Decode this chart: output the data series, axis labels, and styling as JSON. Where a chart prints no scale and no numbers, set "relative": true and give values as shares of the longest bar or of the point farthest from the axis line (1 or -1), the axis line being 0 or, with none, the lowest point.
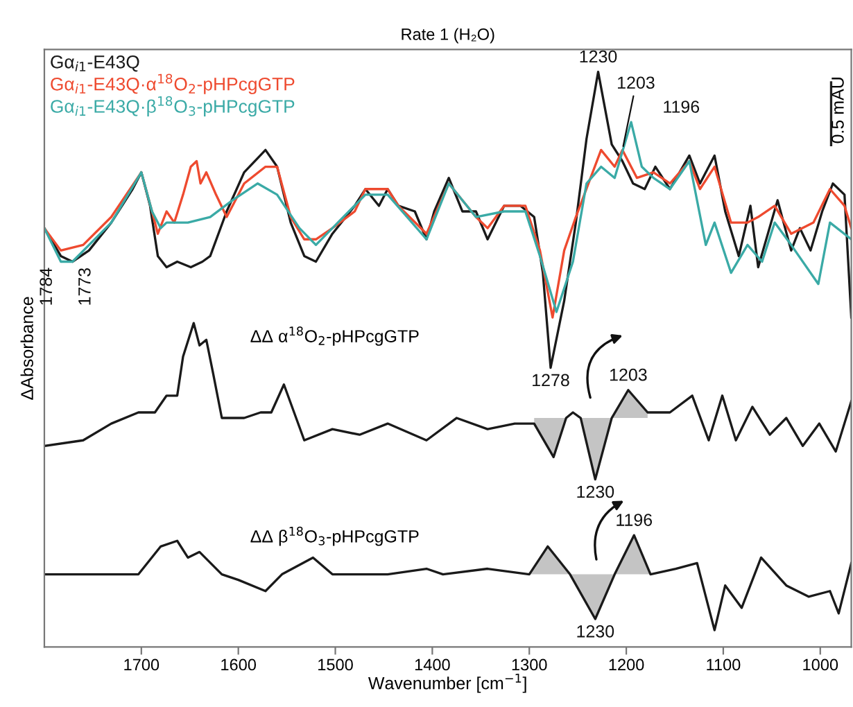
{
  "chart_data": {
    "type": "line",
    "relative": true,
    "title": "Rate 1 (H₂O)",
    "xlabel": "Wavenumber [cm$^{−1}$]",
    "ylabel": "ΔAbsorbance",
    "xlim": [
      1800,
      968
    ],
    "xticks": [
      1700,
      1600,
      1500,
      1400,
      1300,
      1200,
      1100,
      1000
    ],
    "legend": "top left",
    "grid": false,
    "series": [
      {
        "name": "Gα$_{i1}$-E43Q",
        "color": "#1a1a1a",
        "x": [
          1800,
          1783,
          1771,
          1754,
          1731,
          1709,
          1700,
          1691,
          1683,
          1674,
          1663,
          1649,
          1637,
          1629,
          1612,
          1594,
          1572,
          1560,
          1546,
          1532,
          1520,
          1503,
          1480,
          1469,
          1455,
          1446,
          1435,
          1418,
          1406,
          1398,
          1383,
          1369,
          1355,
          1343,
          1326,
          1309,
          1295,
          1286,
          1278,
          1264,
          1252,
          1241,
          1229,
          1215,
          1204,
          1193,
          1181,
          1170,
          1155,
          1135,
          1124,
          1109,
          1098,
          1084,
          1072,
          1064,
          1044,
          1030,
          1021,
          1010,
          998,
          987,
          975,
          968
        ],
        "values": [
          0.72,
          0.67,
          0.66,
          0.68,
          0.73,
          0.79,
          0.82,
          0.76,
          0.67,
          0.65,
          0.66,
          0.65,
          0.66,
          0.67,
          0.75,
          0.82,
          0.86,
          0.83,
          0.73,
          0.67,
          0.66,
          0.71,
          0.76,
          0.79,
          0.76,
          0.79,
          0.76,
          0.75,
          0.7,
          0.75,
          0.81,
          0.75,
          0.75,
          0.7,
          0.76,
          0.76,
          0.74,
          0.64,
          0.47,
          0.59,
          0.73,
          0.88,
          1.0,
          0.87,
          0.84,
          0.8,
          0.79,
          0.83,
          0.79,
          0.85,
          0.8,
          0.85,
          0.75,
          0.67,
          0.76,
          0.65,
          0.77,
          0.68,
          0.72,
          0.68,
          0.75,
          0.8,
          0.78,
          0.56
        ]
      },
      {
        "name": "Gα$_{i1}$-E43Q·α$^{18}$O$_{2}$-pHPcgGTP",
        "color": "#ee4a2f",
        "x": [
          1800,
          1783,
          1760,
          1731,
          1700,
          1689,
          1683,
          1674,
          1666,
          1657,
          1649,
          1643,
          1639,
          1633,
          1623,
          1612,
          1594,
          1572,
          1560,
          1546,
          1532,
          1520,
          1503,
          1480,
          1469,
          1446,
          1435,
          1406,
          1383,
          1355,
          1343,
          1326,
          1304,
          1289,
          1276,
          1264,
          1252,
          1226,
          1212,
          1204,
          1189,
          1172,
          1155,
          1135,
          1124,
          1109,
          1092,
          1075,
          1064,
          1047,
          1030,
          1007,
          990,
          975,
          968
        ],
        "values": [
          0.72,
          0.68,
          0.69,
          0.74,
          0.82,
          0.75,
          0.71,
          0.75,
          0.73,
          0.78,
          0.83,
          0.84,
          0.8,
          0.82,
          0.78,
          0.74,
          0.8,
          0.83,
          0.83,
          0.74,
          0.7,
          0.7,
          0.72,
          0.75,
          0.79,
          0.79,
          0.76,
          0.71,
          0.8,
          0.74,
          0.72,
          0.76,
          0.76,
          0.68,
          0.56,
          0.68,
          0.74,
          0.86,
          0.83,
          0.86,
          0.81,
          0.82,
          0.8,
          0.84,
          0.79,
          0.83,
          0.73,
          0.73,
          0.74,
          0.76,
          0.71,
          0.73,
          0.79,
          0.76,
          0.72
        ]
      },
      {
        "name": "Gα$_{i1}$-E43Q·β$^{18}$O$_{3}$-pHPcgGTP",
        "color": "#3aaaa6",
        "x": [
          1800,
          1783,
          1771,
          1731,
          1700,
          1689,
          1680,
          1674,
          1652,
          1629,
          1606,
          1580,
          1560,
          1537,
          1520,
          1503,
          1469,
          1446,
          1406,
          1383,
          1355,
          1326,
          1304,
          1289,
          1272,
          1255,
          1241,
          1226,
          1212,
          1195,
          1184,
          1172,
          1155,
          1135,
          1118,
          1109,
          1092,
          1075,
          1060,
          1047,
          1030,
          1002,
          990,
          968
        ],
        "values": [
          0.72,
          0.66,
          0.66,
          0.73,
          0.82,
          0.75,
          0.72,
          0.73,
          0.73,
          0.74,
          0.77,
          0.8,
          0.78,
          0.72,
          0.69,
          0.72,
          0.78,
          0.78,
          0.7,
          0.8,
          0.74,
          0.75,
          0.75,
          0.67,
          0.57,
          0.66,
          0.8,
          0.83,
          0.81,
          0.91,
          0.83,
          0.81,
          0.79,
          0.84,
          0.69,
          0.73,
          0.64,
          0.69,
          0.66,
          0.73,
          0.69,
          0.62,
          0.73,
          0.7
        ]
      },
      {
        "color": "#1a1a1a",
        "x": [
          1800,
          1760,
          1731,
          1703,
          1686,
          1674,
          1663,
          1657,
          1646,
          1640,
          1633,
          1626,
          1617,
          1594,
          1577,
          1566,
          1553,
          1532,
          1503,
          1475,
          1446,
          1406,
          1375,
          1343,
          1315,
          1295,
          1275,
          1262,
          1255,
          1247,
          1232,
          1215,
          1198,
          1178,
          1155,
          1132,
          1115,
          1101,
          1087,
          1070,
          1052,
          1035,
          1018,
          1001,
          984,
          968
        ],
        "values": [
          0.33,
          0.34,
          0.37,
          0.39,
          0.39,
          0.42,
          0.42,
          0.49,
          0.55,
          0.51,
          0.52,
          0.46,
          0.38,
          0.38,
          0.39,
          0.39,
          0.44,
          0.34,
          0.36,
          0.35,
          0.37,
          0.34,
          0.38,
          0.36,
          0.37,
          0.37,
          0.31,
          0.38,
          0.39,
          0.38,
          0.27,
          0.38,
          0.43,
          0.39,
          0.39,
          0.42,
          0.34,
          0.42,
          0.34,
          0.4,
          0.35,
          0.38,
          0.33,
          0.37,
          0.32,
          0.41
        ],
        "lower": [
          null,
          null,
          null,
          null,
          null,
          null,
          null,
          null,
          null,
          null,
          null,
          null,
          null,
          null,
          null,
          null,
          null,
          null,
          null,
          null,
          null,
          null,
          null,
          null,
          null,
          0.37,
          0.31,
          0.38,
          null,
          0.38,
          0.27,
          0.38,
          0.38,
          0.38,
          null,
          null,
          null,
          null,
          null,
          null,
          null,
          null,
          null,
          null,
          null,
          null
        ],
        "upper": [
          null,
          null,
          null,
          null,
          null,
          null,
          null,
          null,
          null,
          null,
          null,
          null,
          null,
          null,
          null,
          null,
          null,
          null,
          null,
          null,
          null,
          null,
          null,
          null,
          null,
          0.38,
          0.38,
          0.38,
          null,
          0.38,
          0.38,
          0.38,
          0.43,
          0.39,
          null,
          null,
          null,
          null,
          null,
          null,
          null,
          null,
          null,
          null,
          null,
          null
        ]
      },
      {
        "color": "#1a1a1a",
        "x": [
          1800,
          1760,
          1703,
          1680,
          1663,
          1652,
          1640,
          1617,
          1600,
          1572,
          1555,
          1523,
          1503,
          1446,
          1406,
          1389,
          1343,
          1300,
          1281,
          1258,
          1232,
          1212,
          1192,
          1175,
          1149,
          1127,
          1109,
          1098,
          1081,
          1061,
          1035,
          1012,
          990,
          981,
          968
        ],
        "values": [
          0.1,
          0.1,
          0.1,
          0.15,
          0.16,
          0.13,
          0.14,
          0.1,
          0.09,
          0.07,
          0.1,
          0.13,
          0.1,
          0.1,
          0.11,
          0.1,
          0.11,
          0.1,
          0.15,
          0.1,
          0.02,
          0.1,
          0.17,
          0.1,
          0.11,
          0.12,
          0.0,
          0.08,
          0.04,
          0.13,
          0.08,
          0.06,
          0.07,
          0.03,
          0.12
        ],
        "lower": [
          null,
          null,
          null,
          null,
          null,
          null,
          null,
          null,
          null,
          null,
          null,
          null,
          null,
          null,
          null,
          null,
          null,
          0.1,
          0.1,
          0.1,
          0.02,
          0.1,
          0.1,
          0.1,
          null,
          null,
          null,
          null,
          null,
          null,
          null,
          null,
          null,
          null,
          null
        ],
        "upper": [
          null,
          null,
          null,
          null,
          null,
          null,
          null,
          null,
          null,
          null,
          null,
          null,
          null,
          null,
          null,
          null,
          null,
          0.1,
          0.15,
          0.1,
          0.1,
          0.1,
          0.17,
          0.1,
          null,
          null,
          null,
          null,
          null,
          null,
          null,
          null,
          null,
          null,
          null
        ]
      }
    ],
    "annotations": [
      "0.5 mAU",
      "ΔΔ α$^{18}$O$_{2}$-pHPcgGTP",
      "ΔΔ β$^{18}$O$_{3}$-pHPcgGTP",
      {
        "text": "1784",
        "x": 1783,
        "y": 0.66
      },
      {
        "text": "1773",
        "x": 1771,
        "y": 0.66
      },
      {
        "text": "1230",
        "x": 1229,
        "y": 1.0
      },
      {
        "text": "1203",
        "x": 1204,
        "y": 0.86
      },
      {
        "text": "1196",
        "x": 1195,
        "y": 0.91
      },
      {
        "text": "1278",
        "x": 1278,
        "y": 0.47
      },
      {
        "text": "1203",
        "x": 1198,
        "y": 0.43
      },
      {
        "text": "1230",
        "x": 1232,
        "y": 0.27
      },
      {
        "text": "1196",
        "x": 1192,
        "y": 0.17
      },
      {
        "text": "1230",
        "x": 1232,
        "y": 0.02
      }
    ]
  }
}
